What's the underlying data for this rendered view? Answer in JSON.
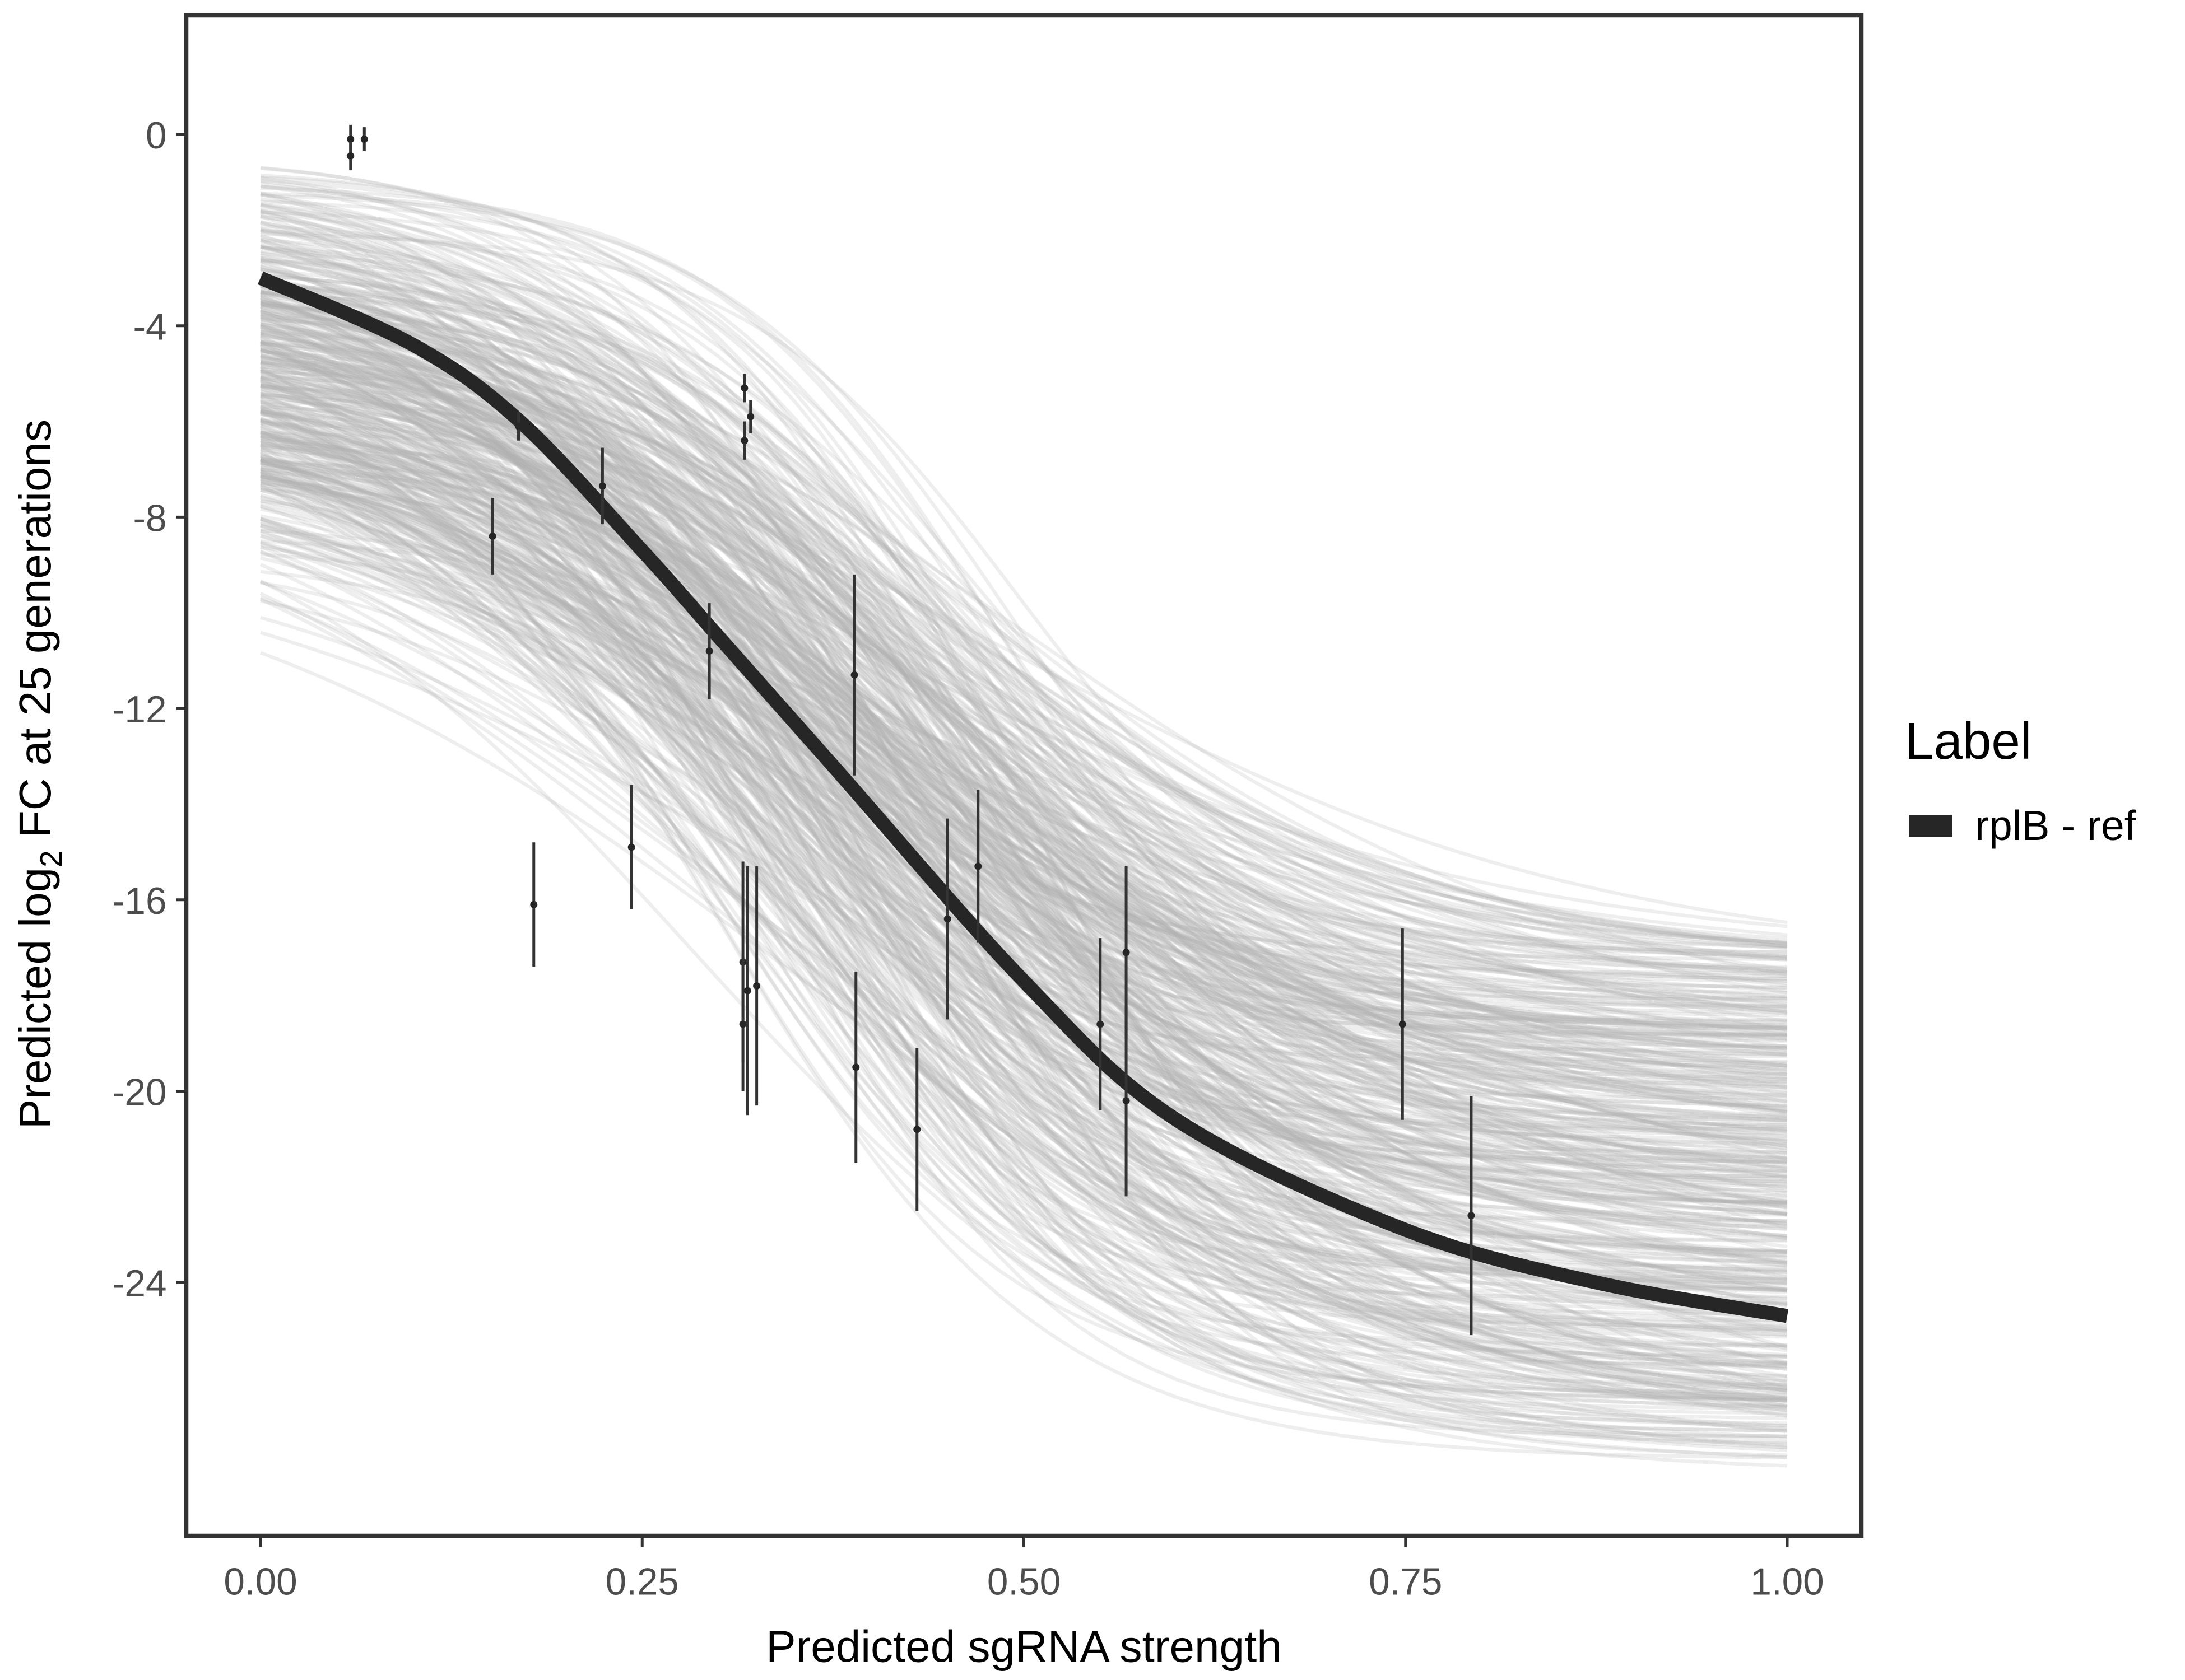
{
  "chart_data": {
    "type": "line",
    "title": "",
    "xlabel": "Predicted sgRNA strength",
    "ylabel_parts": [
      "Predicted  log",
      "2",
      " FC at 25 generations"
    ],
    "xlim": [
      0,
      1
    ],
    "ylim": [
      -29.5,
      2.3
    ],
    "x_ticks": [
      0,
      0.25,
      0.5,
      0.75,
      1
    ],
    "x_tick_labels": [
      "0.00",
      "0.25",
      "0.50",
      "0.75",
      "1.00"
    ],
    "y_ticks": [
      0,
      -4,
      -8,
      -12,
      -16,
      -20,
      -24
    ],
    "y_tick_labels": [
      "0",
      "-4",
      "-8",
      "-12",
      "-16",
      "-20",
      "-24"
    ],
    "grid": false,
    "legend": {
      "title": "Label",
      "placement": "right",
      "entries": [
        {
          "label": "rplB - ref",
          "color": "#262626"
        }
      ]
    },
    "fit_curve": {
      "name": "rplB - ref",
      "color": "#262626",
      "x": [
        0,
        0.1,
        0.17,
        0.25,
        0.3,
        0.375,
        0.5,
        0.6,
        0.75,
        0.875,
        1.0
      ],
      "y": [
        -3.0,
        -4.4,
        -6.0,
        -8.7,
        -10.5,
        -13.2,
        -17.7,
        -20.6,
        -22.9,
        -24.0,
        -24.7
      ]
    },
    "posterior_draws_color": "#b3b3b3",
    "points": [
      {
        "x": 0.059,
        "y": -0.1,
        "err": 0.3
      },
      {
        "x": 0.059,
        "y": -0.45,
        "err": 0.3
      },
      {
        "x": 0.068,
        "y": -0.1,
        "err": 0.25
      },
      {
        "x": 0.152,
        "y": -8.4,
        "err": 0.8
      },
      {
        "x": 0.169,
        "y": -6.1,
        "err": 0.3
      },
      {
        "x": 0.179,
        "y": -16.1,
        "err": 1.3
      },
      {
        "x": 0.224,
        "y": -7.35,
        "err": 0.8
      },
      {
        "x": 0.243,
        "y": -14.9,
        "err": 1.3
      },
      {
        "x": 0.294,
        "y": -10.8,
        "err": 1.0
      },
      {
        "x": 0.317,
        "y": -5.3,
        "err": 0.3
      },
      {
        "x": 0.321,
        "y": -5.9,
        "err": 0.35
      },
      {
        "x": 0.317,
        "y": -6.4,
        "err": 0.4
      },
      {
        "x": 0.316,
        "y": -17.3,
        "err": 2.1
      },
      {
        "x": 0.316,
        "y": -18.6,
        "err": 1.4
      },
      {
        "x": 0.319,
        "y": -17.9,
        "err": 2.6
      },
      {
        "x": 0.325,
        "y": -17.8,
        "err": 2.5
      },
      {
        "x": 0.389,
        "y": -11.3,
        "err": 2.1
      },
      {
        "x": 0.39,
        "y": -19.5,
        "err": 2.0
      },
      {
        "x": 0.43,
        "y": -20.8,
        "err": 1.7
      },
      {
        "x": 0.45,
        "y": -16.4,
        "err": 2.1
      },
      {
        "x": 0.47,
        "y": -15.3,
        "err": 1.6
      },
      {
        "x": 0.55,
        "y": -18.6,
        "err": 1.8
      },
      {
        "x": 0.567,
        "y": -17.1,
        "err": 1.8
      },
      {
        "x": 0.567,
        "y": -20.2,
        "err": 2.0
      },
      {
        "x": 0.748,
        "y": -18.6,
        "err": 2.0
      },
      {
        "x": 0.793,
        "y": -22.6,
        "err": 2.5
      }
    ]
  }
}
